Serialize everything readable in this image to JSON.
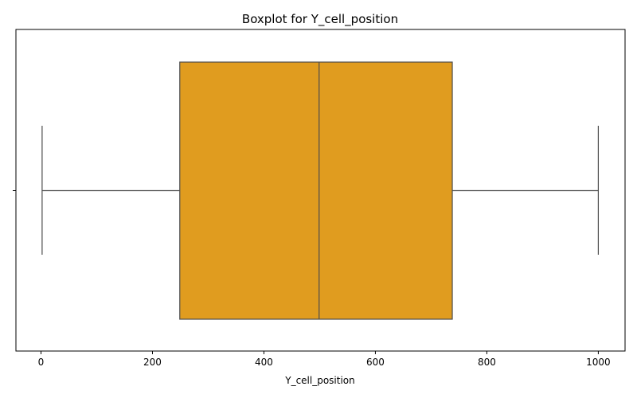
{
  "chart_data": {
    "type": "boxplot",
    "title": "Boxplot for Y_cell_position",
    "xlabel": "Y_cell_position",
    "ylabel": "",
    "orientation": "horizontal",
    "xlim": [
      -45,
      1048
    ],
    "xticks": [
      0,
      200,
      400,
      600,
      800,
      1000
    ],
    "stats": {
      "whisker_low": 2,
      "q1": 249,
      "median": 499,
      "q3": 738,
      "whisker_high": 1000
    },
    "box_color": "#e09c1f",
    "line_color": "#4d4d4d",
    "grid": false,
    "legend": "none"
  }
}
